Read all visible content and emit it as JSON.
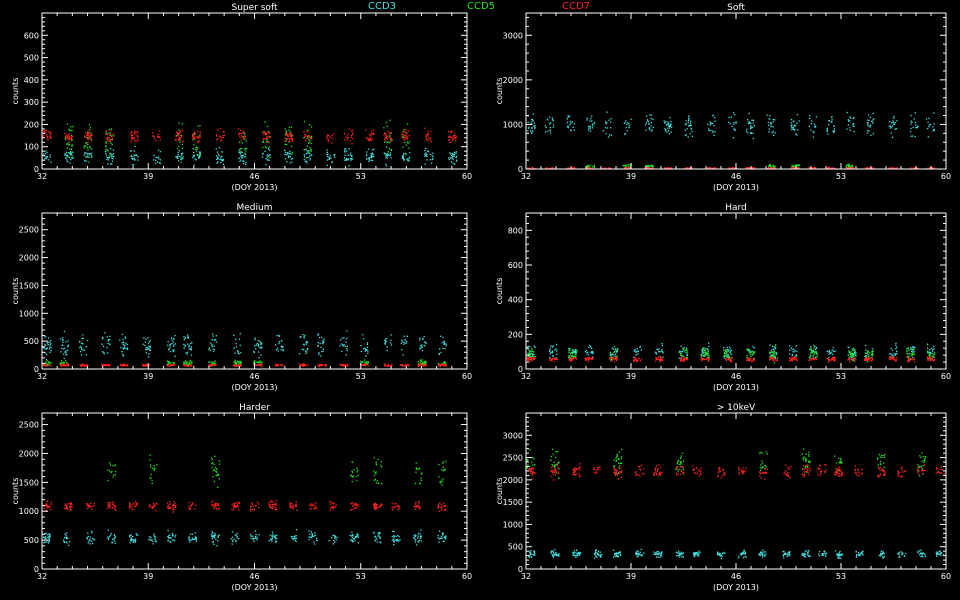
{
  "legend": [
    {
      "name": "CCD3",
      "color": "#40e0e0"
    },
    {
      "name": "CCD5",
      "color": "#20e020"
    },
    {
      "name": "CCD7",
      "color": "#ff2020"
    }
  ],
  "colors": {
    "background": "#000000",
    "axes": "#ffffff",
    "ccd3": "#40e0e0",
    "ccd5": "#20e020",
    "ccd7": "#ff2020"
  },
  "chart_data": [
    {
      "type": "scatter",
      "title": "Super soft",
      "xlabel": "(DOY 2013)",
      "ylabel": "counts",
      "xlim": [
        32,
        60
      ],
      "ylim": [
        0,
        700
      ],
      "xticks": [
        32,
        39,
        46,
        53,
        60
      ],
      "yticks": [
        0,
        100,
        200,
        300,
        400,
        500,
        600
      ],
      "series": [
        {
          "name": "CCD3",
          "typical_level": 60,
          "spread": 50
        },
        {
          "name": "CCD5",
          "typical_level": 130,
          "spread": 120
        },
        {
          "name": "CCD7",
          "typical_level": 150,
          "spread": 40
        }
      ]
    },
    {
      "type": "scatter",
      "title": "Soft",
      "xlabel": "(DOY 2013)",
      "ylabel": "counts",
      "xlim": [
        32,
        60
      ],
      "ylim": [
        0,
        3500
      ],
      "xticks": [
        32,
        39,
        46,
        53,
        60
      ],
      "yticks": [
        0,
        1000,
        2000,
        3000
      ],
      "series": [
        {
          "name": "CCD3",
          "typical_level": 1000,
          "spread": 350
        },
        {
          "name": "CCD5",
          "typical_level": 80,
          "spread": 60
        },
        {
          "name": "CCD7",
          "typical_level": 30,
          "spread": 25
        }
      ]
    },
    {
      "type": "scatter",
      "title": "Medium",
      "xlabel": "(DOY 2013)",
      "ylabel": "counts",
      "xlim": [
        32,
        60
      ],
      "ylim": [
        0,
        2800
      ],
      "xticks": [
        32,
        39,
        46,
        53,
        60
      ],
      "yticks": [
        0,
        500,
        1000,
        1500,
        2000,
        2500
      ],
      "series": [
        {
          "name": "CCD3",
          "typical_level": 450,
          "spread": 300
        },
        {
          "name": "CCD5",
          "typical_level": 120,
          "spread": 80
        },
        {
          "name": "CCD7",
          "typical_level": 80,
          "spread": 30
        }
      ]
    },
    {
      "type": "scatter",
      "title": "Hard",
      "xlabel": "(DOY 2013)",
      "ylabel": "counts",
      "xlim": [
        32,
        60
      ],
      "ylim": [
        0,
        900
      ],
      "xticks": [
        32,
        39,
        46,
        53,
        60
      ],
      "yticks": [
        0,
        200,
        400,
        600,
        800
      ],
      "series": [
        {
          "name": "CCD3",
          "typical_level": 100,
          "spread": 60
        },
        {
          "name": "CCD5",
          "typical_level": 90,
          "spread": 60
        },
        {
          "name": "CCD7",
          "typical_level": 60,
          "spread": 20
        }
      ]
    },
    {
      "type": "scatter",
      "title": "Harder",
      "xlabel": "(DOY 2013)",
      "ylabel": "counts",
      "xlim": [
        32,
        60
      ],
      "ylim": [
        0,
        2700
      ],
      "xticks": [
        32,
        39,
        46,
        53,
        60
      ],
      "yticks": [
        0,
        500,
        1000,
        1500,
        2000,
        2500
      ],
      "series": [
        {
          "name": "CCD3",
          "typical_level": 550,
          "spread": 150
        },
        {
          "name": "CCD5",
          "typical_level": 1700,
          "spread": 350
        },
        {
          "name": "CCD7",
          "typical_level": 1100,
          "spread": 120
        }
      ]
    },
    {
      "type": "scatter",
      "title": "> 10keV",
      "xlabel": "(DOY 2013)",
      "ylabel": "counts",
      "xlim": [
        32,
        60
      ],
      "ylim": [
        0,
        3500
      ],
      "xticks": [
        32,
        39,
        46,
        53,
        60
      ],
      "yticks": [
        0,
        500,
        1000,
        1500,
        2000,
        2500,
        3000
      ],
      "series": [
        {
          "name": "CCD3",
          "typical_level": 350,
          "spread": 120
        },
        {
          "name": "CCD5",
          "typical_level": 2400,
          "spread": 400
        },
        {
          "name": "CCD7",
          "typical_level": 2200,
          "spread": 200
        }
      ]
    }
  ]
}
